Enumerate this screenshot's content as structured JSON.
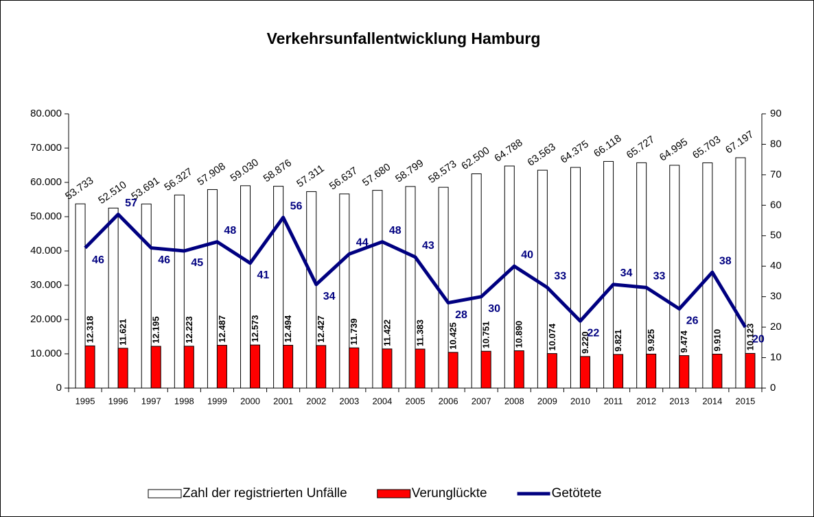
{
  "chart_data": {
    "type": "bar-line",
    "title": "Verkehrsunfallentwicklung Hamburg",
    "categories": [
      "1995",
      "1996",
      "1997",
      "1998",
      "1999",
      "2000",
      "2001",
      "2002",
      "2003",
      "2004",
      "2005",
      "2006",
      "2007",
      "2008",
      "2009",
      "2010",
      "2011",
      "2012",
      "2013",
      "2014",
      "2015"
    ],
    "series": [
      {
        "name": "Zahl der registrierten Unfälle",
        "color": "#ffffff",
        "type": "bar",
        "values": [
          53733,
          52510,
          53691,
          56327,
          57908,
          59030,
          58876,
          57311,
          56637,
          57680,
          58799,
          58573,
          62500,
          64788,
          63563,
          64375,
          66118,
          65727,
          64995,
          65703,
          67197
        ],
        "value_labels": [
          "53.733",
          "52.510",
          "53.691",
          "56.327",
          "57.908",
          "59.030",
          "58.876",
          "57.311",
          "56.637",
          "57.680",
          "58.799",
          "58.573",
          "62.500",
          "64.788",
          "63.563",
          "64.375",
          "66.118",
          "65.727",
          "64.995",
          "65.703",
          "67.197"
        ]
      },
      {
        "name": "Verunglückte",
        "color": "#ff0000",
        "type": "bar",
        "values": [
          12318,
          11621,
          12195,
          12223,
          12487,
          12573,
          12494,
          12427,
          11739,
          11422,
          11383,
          10425,
          10751,
          10890,
          10074,
          9220,
          9821,
          9925,
          9474,
          9910,
          10123
        ],
        "value_labels": [
          "12.318",
          "11.621",
          "12.195",
          "12.223",
          "12.487",
          "12.573",
          "12.494",
          "12.427",
          "11.739",
          "11.422",
          "11.383",
          "10.425",
          "10.751",
          "10.890",
          "10.074",
          "9.220",
          "9.821",
          "9.925",
          "9.474",
          "9.910",
          "10.123"
        ]
      },
      {
        "name": "Getötete",
        "color": "#000080",
        "type": "line",
        "axis": "y2",
        "values": [
          46,
          57,
          46,
          45,
          48,
          41,
          56,
          34,
          44,
          48,
          43,
          28,
          30,
          40,
          33,
          22,
          34,
          33,
          26,
          38,
          20
        ]
      }
    ],
    "ylim": [
      0,
      80000
    ],
    "yticks": [
      0,
      {
        "value": 10000,
        "label": "10.000"
      },
      {
        "value": 20000,
        "label": "20.000"
      },
      {
        "value": 30000,
        "label": "30.000"
      },
      {
        "value": 40000,
        "label": "40.000"
      },
      {
        "value": 50000,
        "label": "50.000"
      },
      {
        "value": 60000,
        "label": "60.000"
      },
      {
        "value": 70000,
        "label": "70.000"
      },
      {
        "value": 80000,
        "label": "80.000"
      }
    ],
    "y2lim": [
      0,
      90
    ],
    "y2ticks": [
      0,
      10,
      20,
      30,
      40,
      50,
      60,
      70,
      80,
      90
    ],
    "legend": "bottom",
    "grid": false
  }
}
